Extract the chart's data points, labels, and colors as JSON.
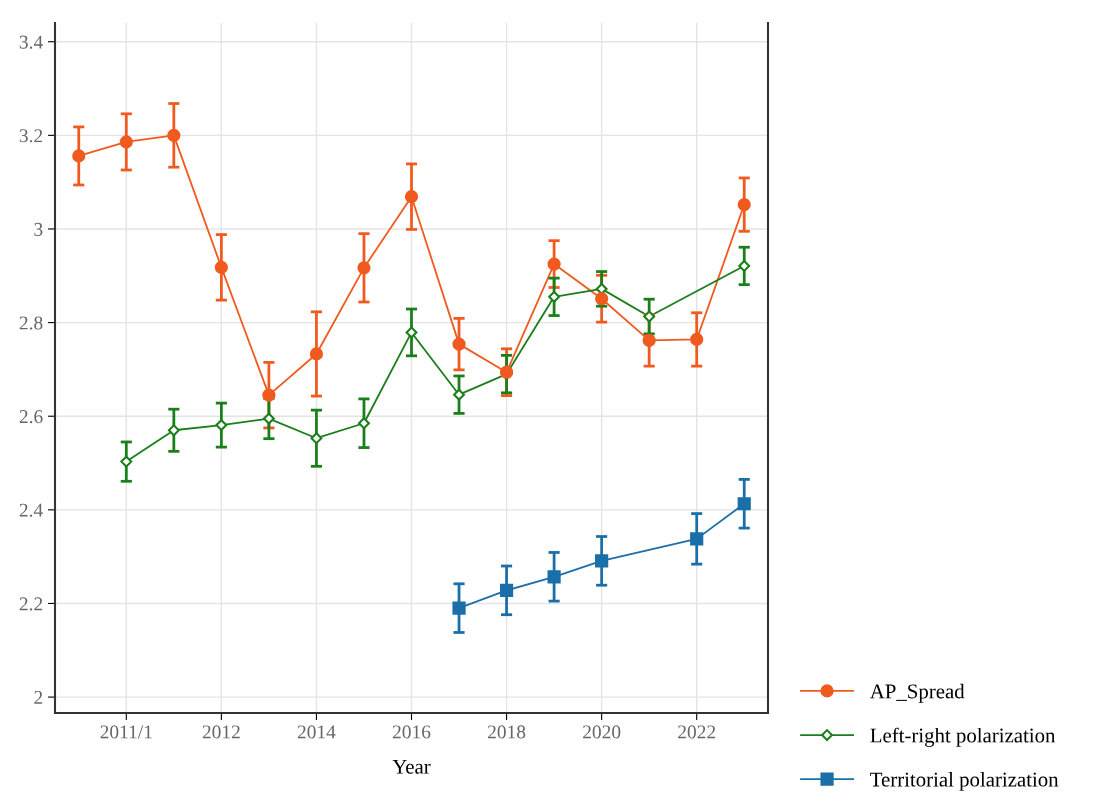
{
  "chart_data": {
    "type": "line",
    "xlabel": "Year",
    "categories": [
      null,
      "2011/1",
      null,
      "2012",
      null,
      "2014",
      null,
      "2016",
      null,
      "2018",
      null,
      "2020",
      null,
      "2022",
      null
    ],
    "ylim": [
      1.966,
      3.44
    ],
    "yticks": [
      2,
      {
        "value": 2.2,
        "label": "2.2"
      },
      {
        "value": 2.4,
        "label": "2.4"
      },
      {
        "value": 2.6,
        "label": "2.6"
      },
      {
        "value": 2.8,
        "label": "2.8"
      },
      3,
      {
        "value": 3.2,
        "label": "3.2"
      },
      {
        "value": 3.4,
        "label": "3.4"
      }
    ],
    "grid": true,
    "legend": "bottom right",
    "line_style": "solid",
    "series": [
      {
        "name": "AP_Spread",
        "color": "#f05a1e",
        "marker": "circle",
        "values": [
          3.156,
          3.186,
          3.2,
          2.918,
          2.645,
          2.733,
          2.917,
          3.069,
          2.754,
          2.694,
          2.925,
          2.851,
          2.762,
          2.764,
          3.052
        ],
        "errors": [
          0.062,
          0.06,
          0.068,
          0.07,
          0.07,
          0.09,
          0.073,
          0.07,
          0.055,
          0.05,
          0.05,
          0.05,
          0.055,
          0.057,
          0.057
        ]
      },
      {
        "name": "Left-right polarization",
        "color": "#1a7f1a",
        "marker": "diamond",
        "values": [
          null,
          2.503,
          2.57,
          2.581,
          2.595,
          2.553,
          2.585,
          2.779,
          2.646,
          2.69,
          2.855,
          2.872,
          2.813,
          null,
          2.921
        ],
        "errors": [
          null,
          0.042,
          0.045,
          0.047,
          0.043,
          0.06,
          0.052,
          0.05,
          0.04,
          0.04,
          0.04,
          0.037,
          0.037,
          null,
          0.04
        ]
      },
      {
        "name": "Territorial polarization",
        "color": "#1a6fa8",
        "marker": "square",
        "values": [
          null,
          null,
          null,
          null,
          null,
          null,
          null,
          null,
          2.19,
          2.228,
          2.257,
          2.291,
          null,
          2.338,
          2.413
        ],
        "errors": [
          null,
          null,
          null,
          null,
          null,
          null,
          null,
          null,
          0.052,
          0.052,
          0.052,
          0.052,
          null,
          0.054,
          0.052
        ]
      }
    ]
  }
}
